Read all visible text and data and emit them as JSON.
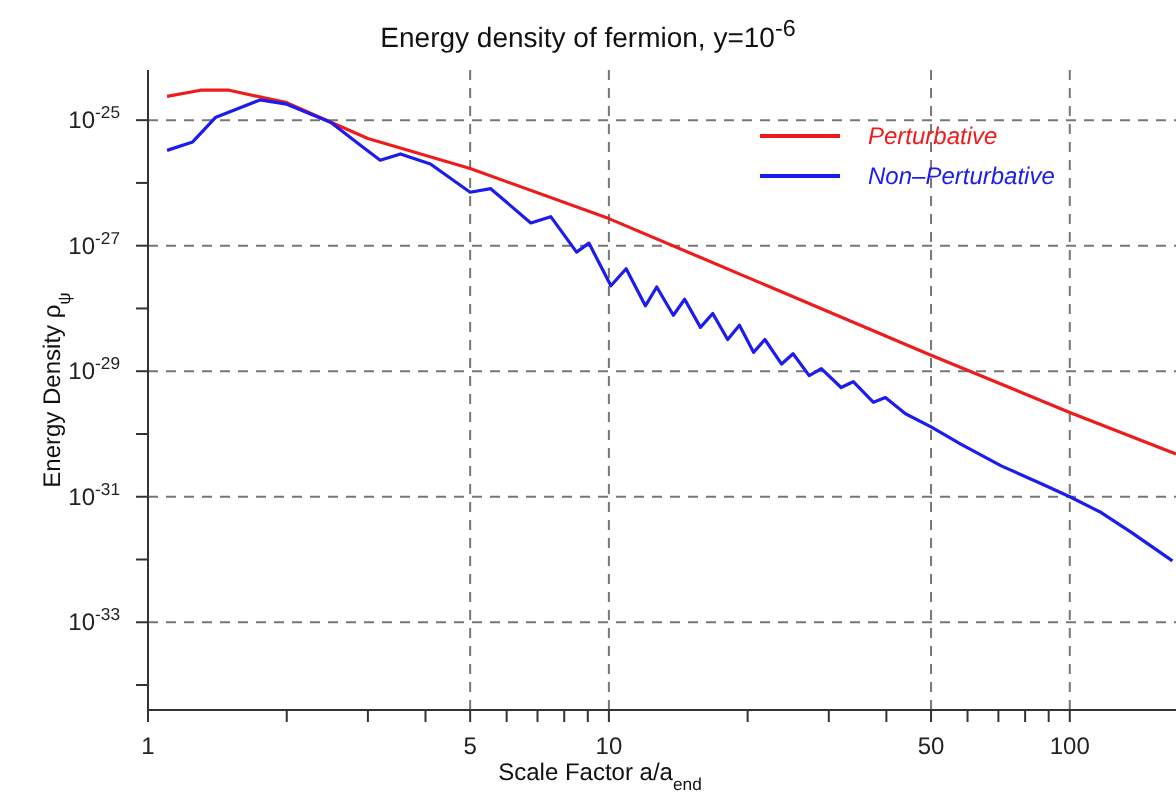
{
  "chart_data": {
    "type": "line",
    "title": "Energy density of fermion, y=10$^{-6}$",
    "xlabel": "Scale Factor a/a$_{end}$",
    "ylabel": "Energy Density ρ$_{ψ}$",
    "log": "xy",
    "grid": true,
    "legend": "top right",
    "line_style": "solid",
    "marker": "none",
    "xlim": [
      1,
      170
    ],
    "xticks": [
      1,
      {
        "value": 2,
        "label": null
      },
      {
        "value": 3,
        "label": null
      },
      {
        "value": 4,
        "label": null
      },
      5,
      {
        "value": 6,
        "label": null
      },
      {
        "value": 7,
        "label": null
      },
      {
        "value": 8,
        "label": null
      },
      {
        "value": 9,
        "label": null
      },
      10,
      {
        "value": 20,
        "label": null
      },
      {
        "value": 30,
        "label": null
      },
      {
        "value": 40,
        "label": null
      },
      50,
      {
        "value": 60,
        "label": null
      },
      {
        "value": 70,
        "label": null
      },
      {
        "value": 80,
        "label": null
      },
      {
        "value": 90,
        "label": null
      },
      100
    ],
    "ylim": [
      4e-35,
      6.3e-25
    ],
    "yticks": [
      {
        "value": 1e-25,
        "label": "10$^{-25}$"
      },
      {
        "value": 1e-26,
        "label": null
      },
      {
        "value": 1e-27,
        "label": "10$^{-27}$"
      },
      {
        "value": 1e-28,
        "label": null
      },
      {
        "value": 1e-29,
        "label": "10$^{-29}$"
      },
      {
        "value": 1e-30,
        "label": null
      },
      {
        "value": 1e-31,
        "label": "10$^{-31}$"
      },
      {
        "value": 1e-32,
        "label": null
      },
      {
        "value": 1e-33,
        "label": "10$^{-33}$"
      },
      {
        "value": 1e-34,
        "label": null
      }
    ],
    "series": [
      {
        "name": "Perturbative",
        "color": "#ee1c1c",
        "x": [
          1.1,
          1.3,
          1.5,
          2,
          3,
          5,
          10,
          50,
          100,
          170
        ],
        "values": [
          2.4e-25,
          3e-25,
          3e-25,
          1.9e-25,
          5.1e-26,
          1.7e-26,
          2.7e-27,
          1.8e-29,
          2.2e-30,
          4.8e-31
        ]
      },
      {
        "name": "Non–Perturbative",
        "color": "#1c1cee",
        "x": [
          1.1,
          1.25,
          1.4,
          1.75,
          2.0,
          2.49,
          2.89,
          3.19,
          3.53,
          4.1,
          5.0,
          5.54,
          6.77,
          7.48,
          8.51,
          9.05,
          10.1,
          10.9,
          12.0,
          12.7,
          13.8,
          14.6,
          15.8,
          16.8,
          18.1,
          19.2,
          20.6,
          21.8,
          23.7,
          25.1,
          27.2,
          28.9,
          31.9,
          33.9,
          37.5,
          39.8,
          44.0,
          50,
          58,
          71,
          87,
          100,
          117,
          136,
          167
        ],
        "values": [
          3.3e-26,
          4.5e-26,
          1.1e-25,
          2.1e-25,
          1.8e-25,
          9.3e-26,
          4e-26,
          2.3e-26,
          2.9e-26,
          2e-26,
          7.1e-27,
          8.1e-27,
          2.3e-27,
          2.9e-27,
          7.9e-28,
          1.1e-27,
          2.3e-28,
          4.3e-28,
          1.1e-28,
          2.2e-28,
          7.8e-29,
          1.4e-28,
          5e-29,
          8.3e-29,
          3.2e-29,
          5.4e-29,
          2e-29,
          3.2e-29,
          1.3e-29,
          1.9e-29,
          8.5e-30,
          1.1e-29,
          5.5e-30,
          6.8e-30,
          3.2e-30,
          3.8e-30,
          2.1e-30,
          1.3e-30,
          6.9e-31,
          3.1e-31,
          1.6e-31,
          1e-31,
          5.6e-32,
          2.7e-32,
          9.5e-33
        ]
      }
    ]
  }
}
